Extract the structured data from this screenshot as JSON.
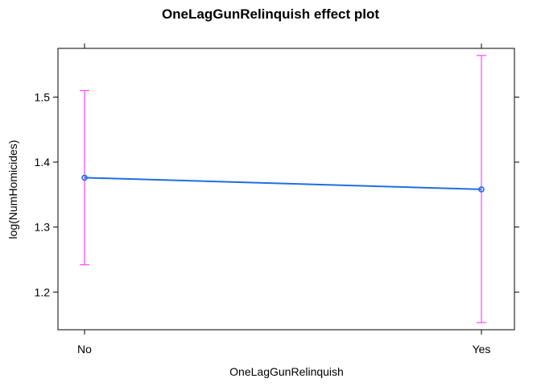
{
  "chart_data": {
    "type": "line",
    "title": "OneLagGunRelinquish effect plot",
    "xlabel": "OneLagGunRelinquish",
    "ylabel": "log(NumHomicides)",
    "categories": [
      "No",
      "Yes"
    ],
    "series": [
      {
        "values": [
          1.376,
          1.358
        ],
        "lower": [
          1.242,
          1.153
        ],
        "upper": [
          1.51,
          1.564
        ]
      }
    ],
    "yticks": [
      "1.2",
      "1.3",
      "1.4",
      "1.5"
    ],
    "ylim": [
      1.142,
      1.575
    ],
    "grid": false,
    "legend": "none",
    "colors": {
      "line": "#1f6fe0",
      "errorbar": "#ff44ff",
      "axis": "#000000"
    }
  }
}
